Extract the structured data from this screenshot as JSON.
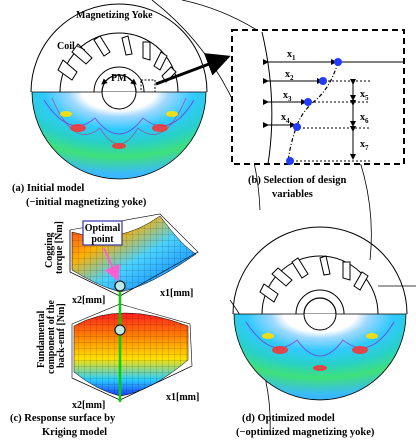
{
  "panel_a": {
    "yoke_label": "Magnetizing Yoke",
    "coil_label": "Coil",
    "pm_label": "PM",
    "caption_line1": "(a) Initial model",
    "caption_line2": "(−initial magnetizing yoke)"
  },
  "panel_b": {
    "x1": "x",
    "s1": "1",
    "x2": "x",
    "s2": "2",
    "x3": "x",
    "s3": "3",
    "x4": "x",
    "s4": "4",
    "x5": "x",
    "s5": "5",
    "x6": "x",
    "s6": "6",
    "x7": "x",
    "s7": "7",
    "caption_line1": "(b) Selection of design",
    "caption_line2": "variables"
  },
  "panel_c": {
    "optimal_line1": "Optimal",
    "optimal_line2": "point",
    "cog_label_line1": "Cogging",
    "cog_label_line2": "torque [Nm]",
    "fund_label_line1": "Fundamental",
    "fund_label_line2": "component of the",
    "fund_label_line3": "back-emf [Nm]",
    "x2_label_top": "x2[mm]",
    "x1_label_top": "x1[mm]",
    "x2_label_bottom": "x2[mm]",
    "x1_label_bottom": "x1[mm]",
    "caption_line1": "(c) Response surface by",
    "caption_line2": "Kriging model"
  },
  "panel_d": {
    "caption_line1": "(d) Optimized model",
    "caption_line2": "(−optimized magnetizing yoke)"
  },
  "colors": {
    "design_point": "#1f3cff",
    "optimal_point": "#bfe8e8",
    "optimal_arrow": "#ff5fd0",
    "link_line": "#00d000"
  }
}
